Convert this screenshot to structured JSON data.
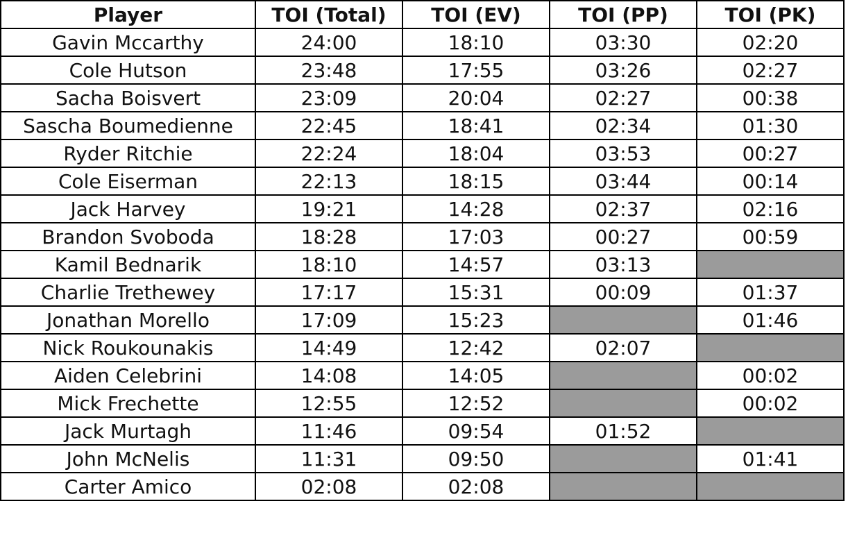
{
  "table": {
    "header": [
      "Player",
      "TOI (Total)",
      "TOI (EV)",
      "TOI (PP)",
      "TOI (PK)"
    ],
    "rows": [
      [
        "Gavin Mccarthy",
        "24:00",
        "18:10",
        "03:30",
        "02:20"
      ],
      [
        "Cole Hutson",
        "23:48",
        "17:55",
        "03:26",
        "02:27"
      ],
      [
        "Sacha Boisvert",
        "23:09",
        "20:04",
        "02:27",
        "00:38"
      ],
      [
        "Sascha Boumedienne",
        "22:45",
        "18:41",
        "02:34",
        "01:30"
      ],
      [
        "Ryder Ritchie",
        "22:24",
        "18:04",
        "03:53",
        "00:27"
      ],
      [
        "Cole Eiserman",
        "22:13",
        "18:15",
        "03:44",
        "00:14"
      ],
      [
        "Jack Harvey",
        "19:21",
        "14:28",
        "02:37",
        "02:16"
      ],
      [
        "Brandon Svoboda",
        "18:28",
        "17:03",
        "00:27",
        "00:59"
      ],
      [
        "Kamil Bednarik",
        "18:10",
        "14:57",
        "03:13",
        null
      ],
      [
        "Charlie Trethewey",
        "17:17",
        "15:31",
        "00:09",
        "01:37"
      ],
      [
        "Jonathan Morello",
        "17:09",
        "15:23",
        null,
        "01:46"
      ],
      [
        "Nick Roukounakis",
        "14:49",
        "12:42",
        "02:07",
        null
      ],
      [
        "Aiden Celebrini",
        "14:08",
        "14:05",
        null,
        "00:02"
      ],
      [
        "Mick Frechette",
        "12:55",
        "12:52",
        null,
        "00:02"
      ],
      [
        "Jack Murtagh",
        "11:46",
        "09:54",
        "01:52",
        null
      ],
      [
        "John McNelis",
        "11:31",
        "09:50",
        null,
        "01:41"
      ],
      [
        "Carter Amico",
        "02:08",
        "02:08",
        null,
        null
      ]
    ]
  }
}
